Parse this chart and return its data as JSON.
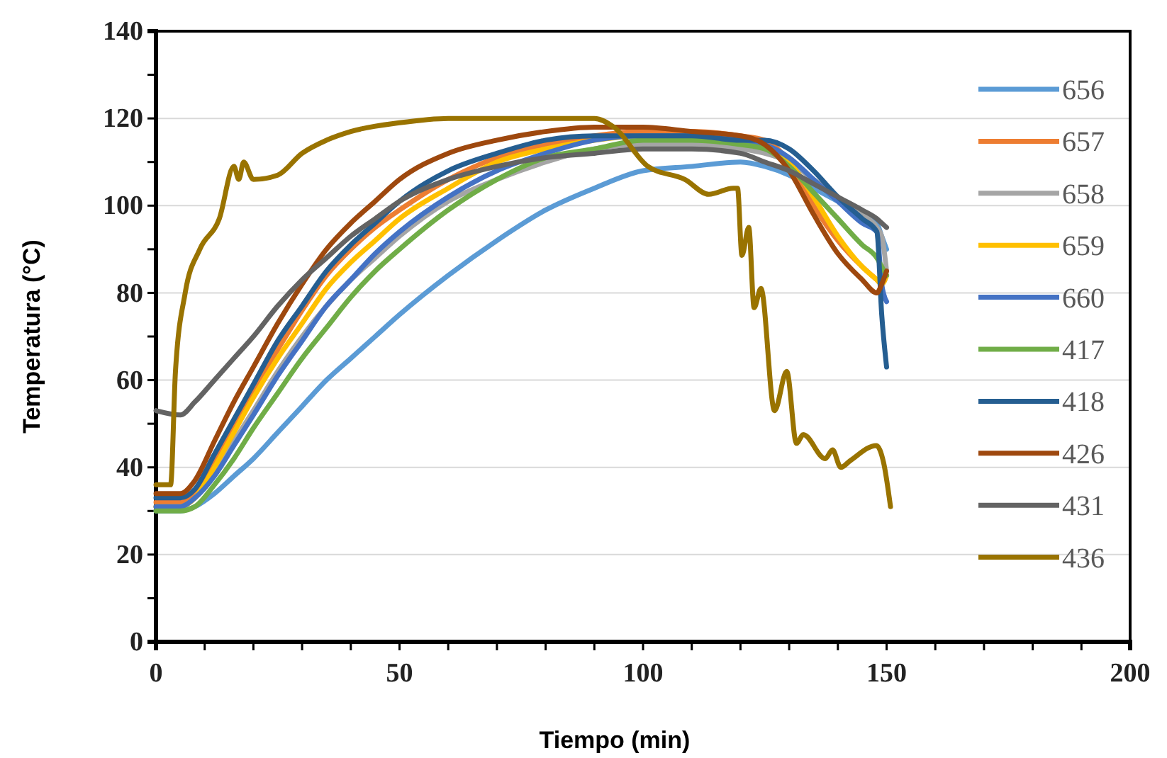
{
  "chart_data": {
    "type": "line",
    "xlabel": "Tiempo (min)",
    "ylabel": "Temperatura (°C)",
    "x": [
      0,
      5,
      8,
      12,
      16,
      20,
      25,
      30,
      35,
      40,
      45,
      50,
      60,
      70,
      80,
      90,
      100,
      110,
      120,
      125,
      130,
      135,
      140,
      145,
      148,
      149,
      150
    ],
    "xlim": [
      0,
      200
    ],
    "xticks": [
      0,
      {
        "value": 10,
        "label": null
      },
      {
        "value": 20,
        "label": null
      },
      {
        "value": 30,
        "label": null
      },
      {
        "value": 40,
        "label": null
      },
      50,
      {
        "value": 60,
        "label": null
      },
      {
        "value": 70,
        "label": null
      },
      {
        "value": 80,
        "label": null
      },
      {
        "value": 90,
        "label": null
      },
      100,
      {
        "value": 110,
        "label": null
      },
      {
        "value": 120,
        "label": null
      },
      {
        "value": 130,
        "label": null
      },
      {
        "value": 140,
        "label": null
      },
      150,
      {
        "value": 160,
        "label": null
      },
      {
        "value": 170,
        "label": null
      },
      {
        "value": 180,
        "label": null
      },
      {
        "value": 190,
        "label": null
      },
      200
    ],
    "ylim": [
      0,
      140
    ],
    "yticks": [
      0,
      {
        "value": 10,
        "label": null
      },
      20,
      {
        "value": 30,
        "label": null
      },
      40,
      {
        "value": 50,
        "label": null
      },
      60,
      {
        "value": 70,
        "label": null
      },
      80,
      {
        "value": 90,
        "label": null
      },
      100,
      {
        "value": 110,
        "label": null
      },
      120,
      {
        "value": 130,
        "label": null
      },
      140
    ],
    "grid": "y",
    "legend": "right",
    "marker": "none",
    "line_style": "solid",
    "series": [
      {
        "name": "656",
        "color": "#5b9bd5",
        "values": [
          30,
          30,
          31,
          34,
          38,
          42,
          48,
          54,
          60,
          65,
          70,
          75,
          84,
          92,
          99,
          104,
          108,
          109,
          110,
          109,
          107,
          104,
          101,
          98,
          96,
          93,
          90
        ]
      },
      {
        "name": "657",
        "color": "#ed7d31",
        "values": [
          32,
          32,
          34,
          42,
          50,
          58,
          67,
          76,
          84,
          90,
          95,
          99,
          106,
          111,
          114,
          116,
          117,
          117,
          116,
          115,
          110,
          100,
          92,
          86,
          83,
          82,
          84
        ]
      },
      {
        "name": "658",
        "color": "#a5a5a5",
        "values": [
          31,
          31,
          33,
          39,
          46,
          53,
          62,
          70,
          77,
          83,
          88,
          93,
          101,
          106,
          110,
          113,
          114,
          114,
          113,
          112,
          110,
          106,
          102,
          98,
          95,
          93,
          85
        ]
      },
      {
        "name": "659",
        "color": "#ffc000",
        "values": [
          31,
          31,
          33,
          40,
          48,
          56,
          65,
          73,
          81,
          87,
          92,
          97,
          104,
          110,
          113,
          115,
          116,
          116,
          115,
          114,
          110,
          102,
          93,
          86,
          83,
          82,
          84
        ]
      },
      {
        "name": "660",
        "color": "#4472c4",
        "values": [
          31,
          31,
          33,
          38,
          45,
          52,
          61,
          69,
          77,
          83,
          89,
          94,
          102,
          108,
          112,
          115,
          116,
          116,
          115,
          114,
          111,
          106,
          101,
          96,
          94,
          82,
          78
        ]
      },
      {
        "name": "417",
        "color": "#70ad47",
        "values": [
          30,
          30,
          31,
          36,
          42,
          49,
          57,
          65,
          72,
          79,
          85,
          90,
          99,
          106,
          111,
          113,
          115,
          115,
          114,
          113,
          109,
          103,
          97,
          91,
          88,
          86,
          84
        ]
      },
      {
        "name": "418",
        "color": "#255e91",
        "values": [
          33,
          33,
          35,
          43,
          51,
          59,
          69,
          77,
          85,
          91,
          96,
          101,
          108,
          112,
          115,
          116,
          116,
          116,
          115,
          115,
          113,
          108,
          102,
          97,
          94,
          75,
          63
        ]
      },
      {
        "name": "426",
        "color": "#9e480e",
        "values": [
          34,
          34,
          37,
          46,
          55,
          63,
          73,
          82,
          90,
          96,
          101,
          106,
          112,
          115,
          117,
          118,
          118,
          117,
          116,
          114,
          108,
          98,
          89,
          83,
          80,
          82,
          85
        ]
      },
      {
        "name": "431",
        "color": "#636363",
        "values": [
          53,
          52,
          55,
          60,
          65,
          70,
          77,
          83,
          88,
          93,
          97,
          101,
          106,
          109,
          111,
          112,
          113,
          113,
          112,
          110,
          108,
          105,
          102,
          99,
          97,
          96,
          95
        ]
      },
      {
        "name": "436",
        "color": "#997300",
        "x": [
          0,
          3,
          4,
          6,
          9,
          13,
          16,
          17,
          18,
          20,
          25,
          30,
          35,
          40,
          50,
          60,
          70,
          80,
          90,
          94,
          101,
          108.6,
          113.5,
          118.5,
          119.4,
          120.3,
          121.7,
          122.8,
          124.2,
          127,
          129.5,
          131.5,
          132.9,
          137.4,
          138.9,
          140.6,
          142.5,
          147.9,
          149.4,
          150.8
        ],
        "values": [
          36,
          36,
          62,
          80,
          90,
          97,
          109,
          106,
          110,
          106,
          107,
          112,
          115,
          117,
          119,
          120,
          120,
          120,
          120,
          118,
          109,
          106,
          102.6,
          104,
          104,
          88.6,
          95,
          76.6,
          81,
          53,
          62,
          45.5,
          47.5,
          42,
          44,
          40,
          41.5,
          45,
          41,
          31
        ]
      }
    ]
  }
}
